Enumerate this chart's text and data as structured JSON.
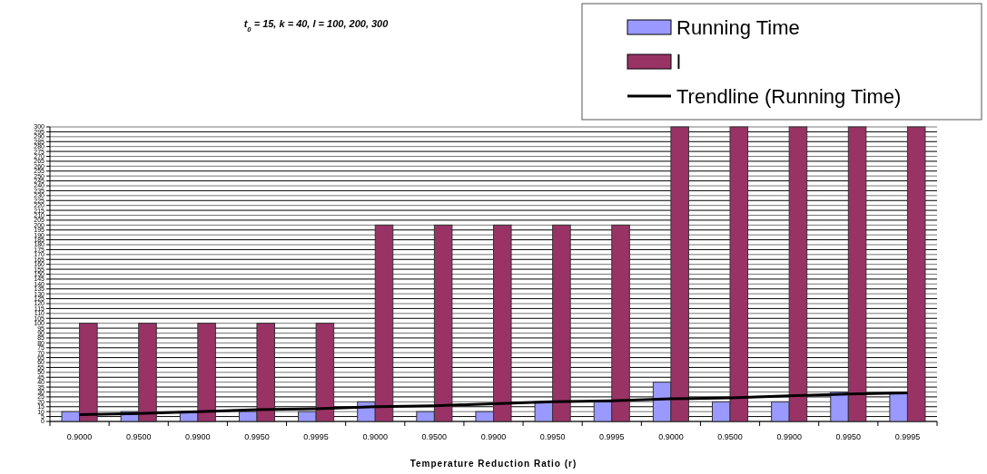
{
  "chart_data": {
    "type": "bar",
    "title": "t$_{0}$ = 15, k = 40, l = 100, 200, 300",
    "xlabel": "Temperature Reduction Ratio (r)",
    "categories": [
      "0.9000",
      "0.9500",
      "0.9900",
      "0.9950",
      "0.9995",
      "0.9000",
      "0.9500",
      "0.9900",
      "0.9950",
      "0.9995",
      "0.9000",
      "0.9500",
      "0.9900",
      "0.9950",
      "0.9995"
    ],
    "series": [
      {
        "name": "Running Time",
        "color": "#9999ff",
        "values": [
          10,
          10,
          10,
          10,
          10,
          20,
          10,
          10,
          20,
          20,
          40,
          20,
          20,
          30,
          30
        ]
      },
      {
        "name": "l",
        "color": "#993366",
        "values": [
          100,
          100,
          100,
          100,
          100,
          200,
          200,
          200,
          200,
          200,
          300,
          300,
          300,
          300,
          300
        ]
      },
      {
        "name": "Trendline (Running Time)",
        "type": "line",
        "color": "#000000",
        "values": [
          7,
          8,
          10,
          12,
          13,
          15,
          16,
          18,
          20,
          21,
          23,
          24,
          26,
          28,
          29
        ]
      }
    ],
    "ylim": [
      0,
      300
    ],
    "yticks": [
      0,
      5,
      10,
      15,
      20,
      25,
      30,
      35,
      40,
      45,
      50,
      55,
      60,
      65,
      70,
      75,
      80,
      85,
      90,
      95,
      100,
      105,
      110,
      115,
      120,
      125,
      130,
      135,
      140,
      145,
      150,
      155,
      160,
      165,
      170,
      175,
      180,
      185,
      190,
      195,
      200,
      205,
      210,
      215,
      220,
      225,
      230,
      235,
      240,
      245,
      250,
      255,
      260,
      265,
      270,
      275,
      280,
      285,
      290,
      295,
      300
    ],
    "grid": "y",
    "legend": "top right"
  }
}
